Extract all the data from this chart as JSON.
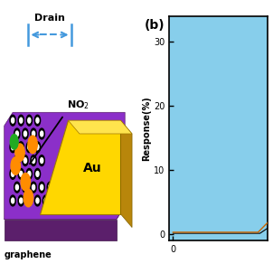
{
  "fig_width": 3.02,
  "fig_height": 3.02,
  "fig_dpi": 100,
  "background_color": "#ffffff",
  "panel_b_label": "(b)",
  "ylabel": "Response(%)",
  "yticks": [
    0,
    10,
    20,
    30
  ],
  "xticks": [
    0
  ],
  "ylim": [
    -1,
    34
  ],
  "xlim": [
    -0.2,
    5
  ],
  "bg_rect_color": "#87CEEB",
  "drain_label": "Drain",
  "no2_label": "NO$_2$",
  "au_label": "Au",
  "graphene_label": "graphene",
  "drain_arrow_color": "#4499DD",
  "graphene_color": "#8B3A9B",
  "graphene_base_color": "#5B1F6B",
  "au_color": "#FFD700",
  "au_dark_color": "#C8A000",
  "orange_ball_color": "#FF8C00",
  "green_ball_color": "#22AA22",
  "curve1_color": "#CC6600",
  "curve2_color": "#000000"
}
